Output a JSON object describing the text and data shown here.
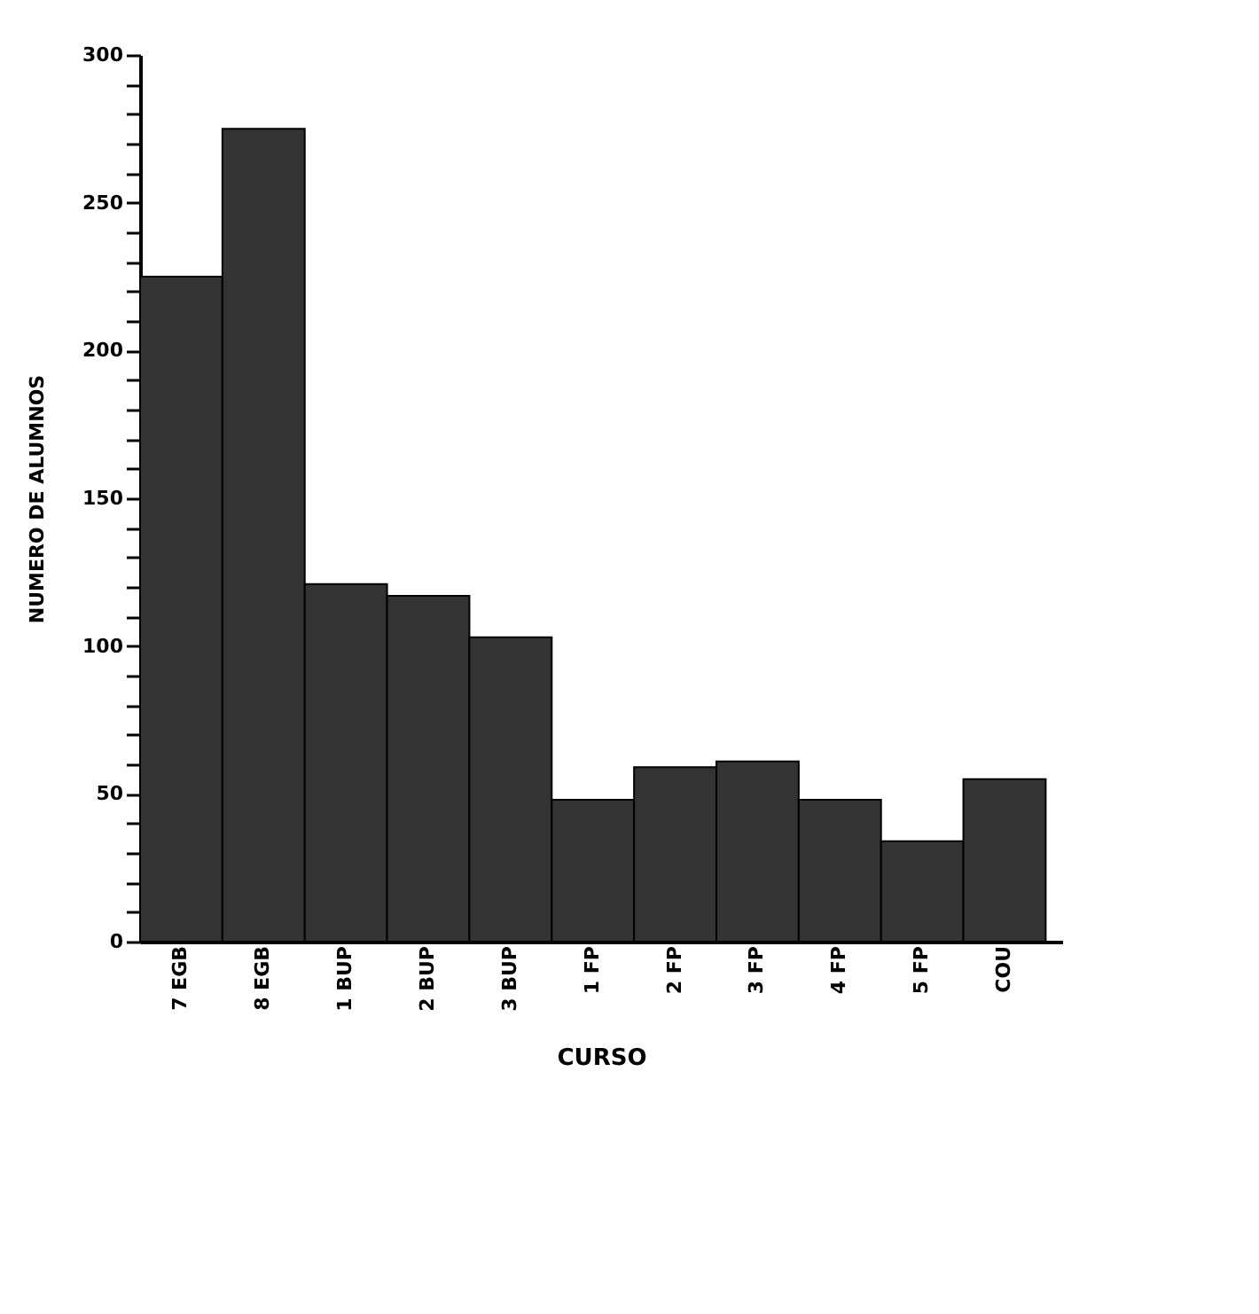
{
  "chart_data": {
    "type": "bar",
    "xlabel": "CURSO",
    "ylabel": "NUMERO DE ALUMNOS",
    "categories": [
      "7 EGB",
      "8 EGB",
      "1 BUP",
      "2 BUP",
      "3 BUP",
      "1 FP",
      "2 FP",
      "3 FP",
      "4 FP",
      "5 FP",
      "COU"
    ],
    "values": [
      225,
      275,
      121,
      117,
      103,
      48,
      59,
      61,
      48,
      34,
      55
    ],
    "color": "#333333",
    "ylim": [
      0,
      300
    ],
    "yticks": [
      0,
      {
        "value": 10,
        "label": null
      },
      {
        "value": 20,
        "label": null
      },
      {
        "value": 30,
        "label": null
      },
      {
        "value": 40,
        "label": null
      },
      50,
      {
        "value": 60,
        "label": null
      },
      {
        "value": 70,
        "label": null
      },
      {
        "value": 80,
        "label": null
      },
      {
        "value": 90,
        "label": null
      },
      100,
      {
        "value": 110,
        "label": null
      },
      {
        "value": 120,
        "label": null
      },
      {
        "value": 130,
        "label": null
      },
      {
        "value": 140,
        "label": null
      },
      150,
      {
        "value": 160,
        "label": null
      },
      {
        "value": 170,
        "label": null
      },
      {
        "value": 180,
        "label": null
      },
      {
        "value": 190,
        "label": null
      },
      200,
      {
        "value": 210,
        "label": null
      },
      {
        "value": 220,
        "label": null
      },
      {
        "value": 230,
        "label": null
      },
      {
        "value": 240,
        "label": null
      },
      250,
      {
        "value": 260,
        "label": null
      },
      {
        "value": 270,
        "label": null
      },
      {
        "value": 280,
        "label": null
      },
      {
        "value": 290,
        "label": null
      },
      300
    ],
    "grid": false
  }
}
